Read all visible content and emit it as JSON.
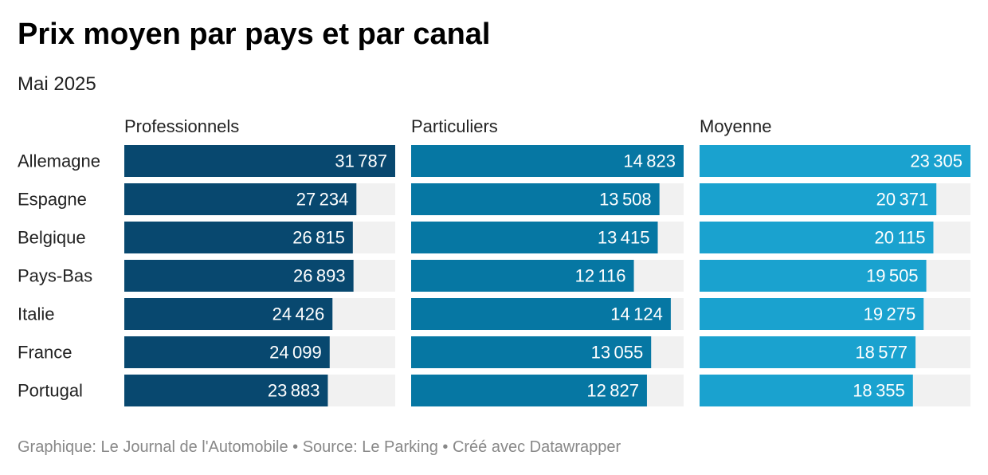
{
  "header": {
    "title": "Prix moyen par pays et par canal",
    "subtitle": "Mai 2025"
  },
  "footer": {
    "parts": [
      "Graphique: Le Journal de l'Automobile",
      "Source: Le Parking",
      "Créé avec Datawrapper"
    ],
    "separator": " • "
  },
  "chart_data": {
    "type": "bar",
    "orientation": "horizontal",
    "layout": "small-multiples",
    "title": "Prix moyen par pays et par canal",
    "subtitle": "Mai 2025",
    "categories": [
      "Allemagne",
      "Espagne",
      "Belgique",
      "Pays-Bas",
      "Italie",
      "France",
      "Portugal"
    ],
    "series": [
      {
        "name": "Professionnels",
        "values": [
          31787,
          27234,
          26815,
          26893,
          24426,
          24099,
          23883
        ],
        "color": "#08486f"
      },
      {
        "name": "Particuliers",
        "values": [
          14823,
          13508,
          13415,
          12116,
          14124,
          13055,
          12827
        ],
        "color": "#0677a3"
      },
      {
        "name": "Moyenne",
        "values": [
          23305,
          20371,
          20115,
          19505,
          19275,
          18577,
          18355
        ],
        "color": "#1aa2cf"
      }
    ],
    "track_color": "#f1f1f1",
    "value_label_color": "#ffffff",
    "value_label_position": "inside-end",
    "grid": false,
    "legend": "none"
  }
}
